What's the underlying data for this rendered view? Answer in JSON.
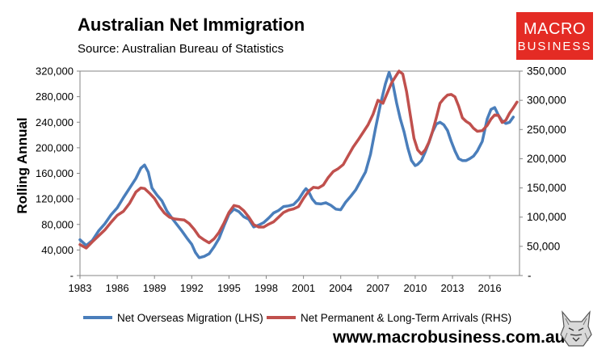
{
  "header": {
    "title": "Australian Net Immigration",
    "subtitle": "Source: Australian Bureau of Statistics"
  },
  "logo": {
    "line1": "MACRO",
    "line2": "BUSINESS",
    "color": "#e42b24"
  },
  "footer": {
    "website": "www.macrobusiness.com.au"
  },
  "chart_data": {
    "type": "line",
    "title": "Australian Net Immigration",
    "subtitle": "Source: Australian Bureau of Statistics",
    "ylabel": "Rolling Annual",
    "xlabel": "",
    "grid": false,
    "legend_position": "bottom",
    "x_ticks": [
      "1983",
      "1986",
      "1989",
      "1992",
      "1995",
      "1998",
      "2001",
      "2004",
      "2007",
      "2010",
      "2013",
      "2016"
    ],
    "xlim": [
      1983,
      2018.4
    ],
    "y_left": {
      "ticks": [
        "-",
        "40,000",
        "80,000",
        "120,000",
        "160,000",
        "200,000",
        "240,000",
        "280,000",
        "320,000"
      ],
      "ylim": [
        0,
        320000
      ]
    },
    "y_right": {
      "ticks": [
        "-",
        "50,000",
        "100,000",
        "150,000",
        "200,000",
        "250,000",
        "300,000",
        "350,000"
      ],
      "ylim": [
        0,
        350000
      ]
    },
    "series": [
      {
        "name": "Net Overseas Migration (LHS)",
        "axis": "left",
        "color": "#4a7ebb",
        "x": [
          1983.0,
          1983.5,
          1984.0,
          1984.5,
          1985.0,
          1985.5,
          1986.0,
          1986.5,
          1987.0,
          1987.5,
          1987.9,
          1988.2,
          1988.5,
          1988.8,
          1989.2,
          1989.6,
          1990.0,
          1990.4,
          1990.8,
          1991.2,
          1991.6,
          1992.0,
          1992.3,
          1992.6,
          1993.0,
          1993.4,
          1993.8,
          1994.2,
          1994.6,
          1995.0,
          1995.4,
          1995.8,
          1996.2,
          1996.6,
          1997.0,
          1997.4,
          1997.8,
          1998.2,
          1998.6,
          1999.0,
          1999.4,
          1999.8,
          2000.2,
          2000.6,
          2001.0,
          2001.2,
          2001.4,
          2001.7,
          2002.0,
          2002.4,
          2002.8,
          2003.2,
          2003.6,
          2004.0,
          2004.4,
          2004.8,
          2005.2,
          2005.6,
          2006.0,
          2006.4,
          2006.8,
          2007.2,
          2007.6,
          2007.9,
          2008.2,
          2008.5,
          2008.8,
          2009.1,
          2009.4,
          2009.7,
          2010.0,
          2010.2,
          2010.5,
          2010.8,
          2011.1,
          2011.4,
          2011.7,
          2012.0,
          2012.3,
          2012.6,
          2012.9,
          2013.2,
          2013.5,
          2013.8,
          2014.1,
          2014.4,
          2014.7,
          2015.0,
          2015.4,
          2015.8,
          2016.1,
          2016.4,
          2016.7,
          2017.0,
          2017.3,
          2017.6,
          2017.9
        ],
        "values": [
          56000,
          47000,
          55000,
          70000,
          81000,
          95000,
          106000,
          122000,
          137000,
          152000,
          168000,
          173000,
          162000,
          137000,
          126000,
          117000,
          101000,
          90000,
          80000,
          70000,
          59000,
          49000,
          36000,
          28000,
          30000,
          34000,
          45000,
          58000,
          78000,
          96000,
          104000,
          100000,
          92000,
          88000,
          76000,
          79000,
          83000,
          90000,
          98000,
          102000,
          108000,
          109000,
          111000,
          119000,
          131000,
          136000,
          132000,
          120000,
          113000,
          112000,
          114000,
          110000,
          104000,
          103000,
          115000,
          124000,
          134000,
          148000,
          162000,
          190000,
          230000,
          268000,
          300000,
          318000,
          300000,
          270000,
          245000,
          225000,
          200000,
          180000,
          172000,
          174000,
          180000,
          193000,
          208000,
          225000,
          237000,
          240000,
          236000,
          227000,
          210000,
          195000,
          183000,
          180000,
          180000,
          183000,
          187000,
          195000,
          210000,
          245000,
          260000,
          263000,
          251000,
          242000,
          238000,
          240000,
          248000
        ]
      },
      {
        "name": "Net Permanent & Long-Term Arrivals (RHS)",
        "axis": "right",
        "color": "#c0504d",
        "x": [
          1983.0,
          1983.5,
          1984.0,
          1984.5,
          1985.0,
          1985.5,
          1986.0,
          1986.5,
          1987.0,
          1987.5,
          1987.9,
          1988.2,
          1988.6,
          1989.0,
          1989.4,
          1989.8,
          1990.2,
          1990.6,
          1991.0,
          1991.4,
          1991.8,
          1992.2,
          1992.6,
          1993.0,
          1993.4,
          1993.8,
          1994.2,
          1994.6,
          1995.0,
          1995.4,
          1995.8,
          1996.2,
          1996.6,
          1997.0,
          1997.4,
          1997.8,
          1998.2,
          1998.6,
          1999.0,
          1999.4,
          1999.8,
          2000.2,
          2000.6,
          2001.0,
          2001.4,
          2001.8,
          2002.2,
          2002.6,
          2003.0,
          2003.4,
          2003.8,
          2004.2,
          2004.6,
          2005.0,
          2005.4,
          2005.8,
          2006.2,
          2006.6,
          2007.0,
          2007.4,
          2007.8,
          2008.1,
          2008.4,
          2008.7,
          2009.0,
          2009.3,
          2009.6,
          2009.9,
          2010.2,
          2010.5,
          2010.8,
          2011.1,
          2011.4,
          2011.7,
          2012.0,
          2012.3,
          2012.6,
          2012.9,
          2013.2,
          2013.5,
          2013.8,
          2014.1,
          2014.4,
          2014.7,
          2015.0,
          2015.4,
          2015.8,
          2016.1,
          2016.4,
          2016.7,
          2017.0,
          2017.3,
          2017.6,
          2017.9,
          2018.2
        ],
        "values": [
          53000,
          47000,
          58000,
          68000,
          78000,
          91000,
          103000,
          110000,
          124000,
          143000,
          150000,
          149000,
          141000,
          132000,
          118000,
          107000,
          100000,
          97000,
          96000,
          95000,
          89000,
          79000,
          67000,
          61000,
          56000,
          63000,
          74000,
          90000,
          108000,
          120000,
          118000,
          111000,
          100000,
          87000,
          83000,
          83000,
          88000,
          92000,
          100000,
          108000,
          112000,
          114000,
          118000,
          132000,
          144000,
          151000,
          150000,
          155000,
          168000,
          178000,
          183000,
          190000,
          205000,
          220000,
          232000,
          245000,
          258000,
          276000,
          300000,
          295000,
          315000,
          330000,
          340000,
          350000,
          345000,
          315000,
          275000,
          235000,
          215000,
          208000,
          215000,
          228000,
          247000,
          270000,
          295000,
          303000,
          309000,
          310000,
          306000,
          290000,
          270000,
          264000,
          260000,
          252000,
          247000,
          248000,
          257000,
          268000,
          275000,
          274000,
          262000,
          266000,
          278000,
          287000,
          297000
        ]
      }
    ]
  }
}
